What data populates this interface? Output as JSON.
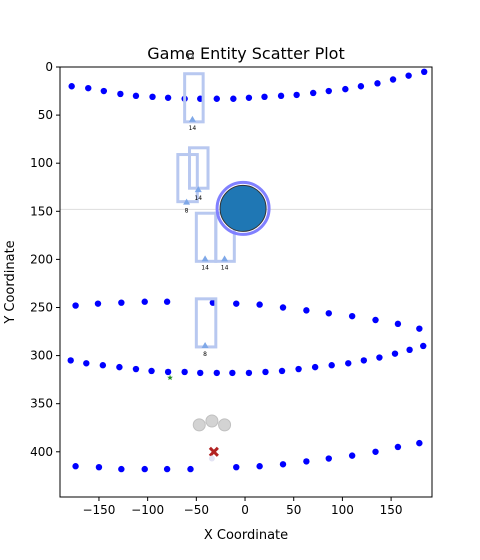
{
  "chart_data": {
    "type": "scatter",
    "title": "Game Entity Scatter Plot",
    "xlabel": "X Coordinate",
    "ylabel": "Y Coordinate",
    "xlim": [
      -190,
      192
    ],
    "ylim": [
      447,
      0
    ],
    "y_inverted": true,
    "x_ticks": [
      -150,
      -100,
      -50,
      0,
      50,
      100,
      150
    ],
    "x_tick_labels": [
      "−150",
      "−100",
      "−50",
      "0",
      "50",
      "100",
      "150"
    ],
    "y_ticks": [
      0,
      50,
      100,
      150,
      200,
      250,
      300,
      350,
      400
    ],
    "y_tick_labels": [
      "0",
      "50",
      "100",
      "150",
      "200",
      "250",
      "300",
      "350",
      "400"
    ],
    "grid": false,
    "horizontal_reference_line": {
      "y": 148,
      "color": "#dddddd"
    },
    "colors": {
      "dot": "#0000ff",
      "box": "#b8c8f0",
      "marker": "#7fa8e8",
      "player": "#1f77b4",
      "player_ring": "#8080ff",
      "enemy": "#b22222",
      "pickup": "#228b22",
      "cloud": "#d3d3d3"
    },
    "series": [
      {
        "marker": "dot",
        "points": [
          [
            -178,
            20
          ],
          [
            -161,
            22
          ],
          [
            -145,
            25
          ],
          [
            -128,
            28
          ],
          [
            -112,
            30
          ],
          [
            -95,
            31
          ],
          [
            -79,
            32
          ],
          [
            -62,
            33
          ],
          [
            -46,
            33
          ],
          [
            -29,
            33
          ],
          [
            -12,
            33
          ],
          [
            4,
            32
          ],
          [
            20,
            31
          ],
          [
            37,
            30
          ],
          [
            53,
            29
          ],
          [
            70,
            27
          ],
          [
            86,
            25
          ],
          [
            103,
            23
          ],
          [
            119,
            20
          ],
          [
            136,
            17
          ],
          [
            152,
            13
          ],
          [
            168,
            9
          ],
          [
            184,
            5
          ],
          [
            -174,
            248
          ],
          [
            -151,
            246
          ],
          [
            -127,
            245
          ],
          [
            -103,
            244
          ],
          [
            -80,
            244
          ],
          [
            -33,
            245
          ],
          [
            -9,
            246
          ],
          [
            15,
            247
          ],
          [
            39,
            250
          ],
          [
            63,
            253
          ],
          [
            86,
            256
          ],
          [
            110,
            259
          ],
          [
            134,
            263
          ],
          [
            157,
            267
          ],
          [
            179,
            272
          ],
          [
            -179,
            305
          ],
          [
            -163,
            308
          ],
          [
            -146,
            310
          ],
          [
            -129,
            312
          ],
          [
            -112,
            314
          ],
          [
            -96,
            316
          ],
          [
            -79,
            317
          ],
          [
            -62,
            317
          ],
          [
            -46,
            318
          ],
          [
            -29,
            318
          ],
          [
            -13,
            318
          ],
          [
            4,
            318
          ],
          [
            21,
            317
          ],
          [
            38,
            316
          ],
          [
            55,
            314
          ],
          [
            72,
            312
          ],
          [
            89,
            310
          ],
          [
            106,
            308
          ],
          [
            122,
            305
          ],
          [
            138,
            302
          ],
          [
            154,
            298
          ],
          [
            169,
            294
          ],
          [
            183,
            290
          ],
          [
            -174,
            415
          ],
          [
            -150,
            416
          ],
          [
            -127,
            418
          ],
          [
            -103,
            418
          ],
          [
            -80,
            418
          ],
          [
            -56,
            418
          ],
          [
            -9,
            416
          ],
          [
            15,
            415
          ],
          [
            39,
            413
          ],
          [
            63,
            410
          ],
          [
            86,
            407
          ],
          [
            110,
            404
          ],
          [
            134,
            400
          ],
          [
            157,
            395
          ],
          [
            179,
            391
          ]
        ]
      },
      {
        "marker": "box",
        "rects": [
          [
            -62,
            7,
            -43,
            57
          ],
          [
            -69,
            91,
            -49,
            140
          ],
          [
            -57,
            84,
            -38,
            126
          ],
          [
            -50,
            152,
            -30,
            202
          ],
          [
            -30,
            152,
            -11,
            202
          ],
          [
            -50,
            241,
            -30,
            291
          ]
        ]
      },
      {
        "marker": "triangle",
        "points": [
          [
            -54,
            55
          ],
          [
            -48,
            128
          ],
          [
            -60,
            141
          ],
          [
            -41,
            200
          ],
          [
            -21,
            200
          ],
          [
            -41,
            290
          ]
        ],
        "labels": [
          "14",
          "14",
          "8",
          "14",
          "14",
          "8"
        ]
      },
      {
        "marker": "player",
        "points": [
          [
            -2,
            147
          ]
        ]
      },
      {
        "marker": "enemy",
        "points": [
          [
            -32,
            400
          ]
        ]
      },
      {
        "marker": "pickup",
        "points": [
          [
            -77,
            323
          ]
        ]
      },
      {
        "marker": "cloud",
        "points": [
          [
            -47,
            372
          ],
          [
            -34,
            368
          ],
          [
            -21,
            372
          ]
        ]
      },
      {
        "marker": "ghost",
        "points": [
          [
            -34,
            407
          ]
        ]
      }
    ],
    "annotations": [
      {
        "text": "14",
        "x": -56,
        "y": -8
      }
    ]
  }
}
